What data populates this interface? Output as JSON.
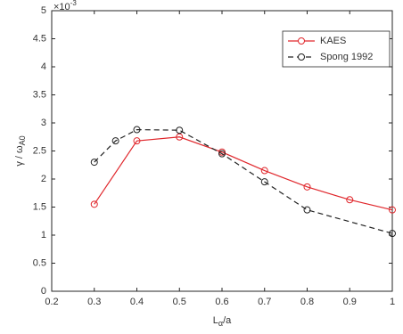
{
  "chart_data": {
    "type": "line",
    "xlabel": [
      "L",
      "α",
      "/a"
    ],
    "ylabel": [
      "γ / ω",
      "A0"
    ],
    "y_multiplier": {
      "base": "×10",
      "exponent": "-3"
    },
    "xlim": [
      0.2,
      1
    ],
    "xticks": [
      0.2,
      0.3,
      0.4,
      0.5,
      0.6,
      0.7,
      0.8,
      0.9,
      1
    ],
    "ylim": [
      0,
      5
    ],
    "yticks": [
      0,
      0.5,
      1,
      1.5,
      2,
      2.5,
      3,
      3.5,
      4,
      4.5,
      5
    ],
    "grid": false,
    "legend": "upper right",
    "series": [
      {
        "name": "KAES",
        "color": "#e0262b",
        "dash": "solid",
        "x": [
          0.3,
          0.4,
          0.5,
          0.6,
          0.7,
          0.8,
          0.9,
          1.0
        ],
        "values": [
          1.55,
          2.68,
          2.75,
          2.48,
          2.15,
          1.86,
          1.63,
          1.45
        ]
      },
      {
        "name": "Spong 1992",
        "color": "#222222",
        "dash": "dashed",
        "x": [
          0.3,
          0.35,
          0.4,
          0.5,
          0.6,
          0.7,
          0.8,
          1.0
        ],
        "values": [
          2.3,
          2.68,
          2.88,
          2.87,
          2.45,
          1.95,
          1.45,
          1.03
        ]
      }
    ]
  }
}
